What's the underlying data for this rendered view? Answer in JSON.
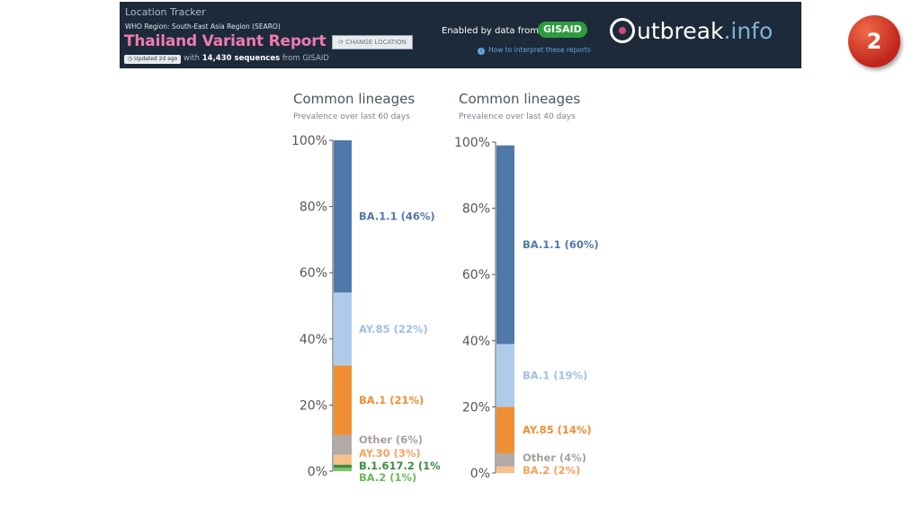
{
  "header": {
    "tracker_label": "Location Tracker",
    "region": "WHO Region: South-East Asia Region (SEARO)",
    "title": "Thailand Variant Report",
    "change_location": "CHANGE LOCATION",
    "updated_badge": "Updated 2d ago",
    "sequences_prefix": "with ",
    "sequences_count": "14,430 sequences",
    "sequences_suffix": " from GISAID",
    "enabled_by": "Enabled by data from",
    "gisaid_logo": "GISAID",
    "interpret_link": "How to interpret these reports",
    "logo_text_main": "utbreak",
    "logo_text_dot": ".info"
  },
  "slide_number": "2",
  "chart_data": [
    {
      "type": "bar",
      "title": "Common lineages",
      "subtitle": "Prevalence over last 60 days",
      "ylim": [
        0,
        100
      ],
      "yticks": [
        "0%",
        "20%",
        "40%",
        "60%",
        "80%",
        "100%"
      ],
      "segments": [
        {
          "name": "BA.2",
          "value": 1,
          "label": "BA.2 (1%)",
          "color": "#7dc46b",
          "label_color": "#6bb85a"
        },
        {
          "name": "B.1.617.2",
          "value": 1,
          "label": "B.1.617.2 (1%)",
          "color": "#3d8c40",
          "label_color": "#3d8c40"
        },
        {
          "name": "AY.30",
          "value": 3,
          "label": "AY.30 (3%)",
          "color": "#f9c08a",
          "label_color": "#f4a460"
        },
        {
          "name": "Other",
          "value": 6,
          "label": "Other (6%)",
          "color": "#b3aaa6",
          "label_color": "#a8a09c"
        },
        {
          "name": "BA.1",
          "value": 21,
          "label": "BA.1 (21%)",
          "color": "#ef8e33",
          "label_color": "#ef8e33"
        },
        {
          "name": "AY.85",
          "value": 22,
          "label": "AY.85 (22%)",
          "color": "#afcbea",
          "label_color": "#9fc0e6"
        },
        {
          "name": "BA.1.1",
          "value": 46,
          "label": "BA.1.1 (46%)",
          "color": "#5079aa",
          "label_color": "#5079aa"
        }
      ]
    },
    {
      "type": "bar",
      "title": "Common lineages",
      "subtitle": "Prevalence over last 40 days",
      "ylim": [
        0,
        100
      ],
      "yticks": [
        "0%",
        "20%",
        "40%",
        "60%",
        "80%",
        "100%"
      ],
      "segments": [
        {
          "name": "BA.2",
          "value": 2,
          "label": "BA.2 (2%)",
          "color": "#f9c08a",
          "label_color": "#f4a460"
        },
        {
          "name": "Other",
          "value": 4,
          "label": "Other (4%)",
          "color": "#b3aaa6",
          "label_color": "#a8a09c"
        },
        {
          "name": "AY.85",
          "value": 14,
          "label": "AY.85 (14%)",
          "color": "#ef8e33",
          "label_color": "#ef8e33"
        },
        {
          "name": "BA.1",
          "value": 19,
          "label": "BA.1 (19%)",
          "color": "#afcbea",
          "label_color": "#9fc0e6"
        },
        {
          "name": "BA.1.1",
          "value": 60,
          "label": "BA.1.1 (60%)",
          "color": "#5079aa",
          "label_color": "#5079aa"
        }
      ]
    }
  ]
}
